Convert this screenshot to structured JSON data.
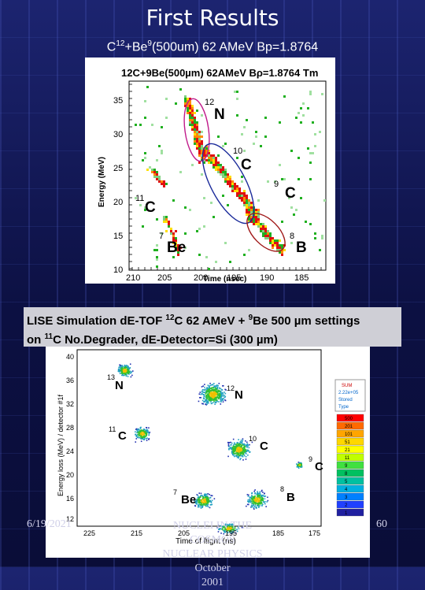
{
  "slide": {
    "title": "First Results",
    "subtitle_prefix": "C",
    "subtitle_sup1": "12",
    "subtitle_mid": "+Be",
    "subtitle_sup2": "9",
    "subtitle_rest": "(500um) 62 AMeV  Bp=1.8764"
  },
  "plot1": {
    "header": "12C+9Be(500µm) 62AMeV Bρ=1.8764 Tm",
    "header_sup1": "12",
    "header_sup2": "9",
    "ylabel": "Energy (MeV)",
    "xlabel": "Time (nsec)",
    "yticks": [
      "35",
      "30",
      "25",
      "20",
      "15",
      "10"
    ],
    "xticks": [
      "210",
      "205",
      "200",
      "195",
      "190",
      "185"
    ],
    "labels": [
      {
        "mass": "12",
        "el": "N"
      },
      {
        "mass": "10",
        "el": "C"
      },
      {
        "mass": "9",
        "el": "C"
      },
      {
        "mass": "11",
        "el": "C"
      },
      {
        "mass": "7",
        "el": "Be"
      },
      {
        "mass": "8",
        "el": "B"
      }
    ]
  },
  "plot2": {
    "caption_line1_a": "LISE Simulation d",
    "caption_line1_b": "E-TOF ",
    "caption_sup1": "12",
    "caption_line1_c": "C 62 AMeV + ",
    "caption_sup2": "9",
    "caption_line1_d": "Be 500 µm settings",
    "caption_line2_a": "on ",
    "caption_sup3": "11",
    "caption_line2_b": "C  No.Degrader, dE-Detector=Si (300 µm)",
    "ylabel": "Energy loss (MeV) / detector #1f",
    "xlabel": "Time of flight (ns)",
    "yticks": [
      "40",
      "36",
      "32",
      "28",
      "24",
      "20",
      "16",
      "12"
    ],
    "xticks": [
      "225",
      "215",
      "205",
      "195",
      "185",
      "175"
    ],
    "labels": [
      {
        "mass": "13",
        "el": "N"
      },
      {
        "mass": "12",
        "el": "N"
      },
      {
        "mass": "11",
        "el": "C"
      },
      {
        "mass": "10",
        "el": "C"
      },
      {
        "mass": "9",
        "el": "C"
      },
      {
        "mass": "7",
        "el": "Be"
      },
      {
        "mass": "8",
        "el": "B"
      }
    ],
    "legend_header": [
      "SUM",
      "2.22e+05",
      "Stored",
      "Type"
    ],
    "colorscale": [
      "500",
      "201",
      "101",
      "51",
      "21",
      "11",
      "9",
      "8",
      "5",
      "4",
      "3",
      "2",
      "1"
    ]
  },
  "footer": {
    "date": "6/19/2021",
    "conf_line1": "NUCLEI IN THE COSMOS",
    "conf_line2": "NUCLEAR PHYSICS October",
    "conf_line3": "2001",
    "page": "60"
  }
}
